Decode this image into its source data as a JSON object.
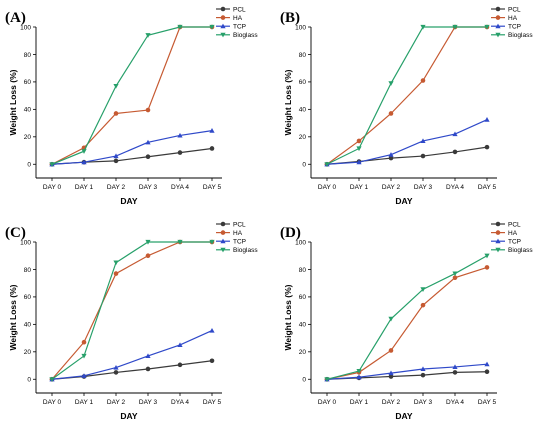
{
  "chart_data": [
    {
      "type": "line",
      "panel_label": "(A)",
      "xlabel": "DAY",
      "ylabel": "Weight Loss (%)",
      "categories": [
        "DAY 0",
        "DAY 1",
        "DAY 2",
        "DAY 3",
        "DYA 4",
        "DAY 5"
      ],
      "ylim": [
        -10,
        100
      ],
      "yticks": [
        0,
        20,
        40,
        60,
        80,
        100
      ],
      "legend_position": "top-right",
      "series": [
        {
          "name": "PCL",
          "color": "#3a3a3a",
          "marker": "circle",
          "values": [
            0,
            1.5,
            2.5,
            5.5,
            8.5,
            11.5
          ]
        },
        {
          "name": "HA",
          "color": "#c65a32",
          "marker": "circle",
          "values": [
            0,
            12,
            37,
            39.5,
            100,
            100
          ]
        },
        {
          "name": "TCP",
          "color": "#2f49c9",
          "marker": "triangle",
          "values": [
            0,
            1.5,
            6,
            16,
            21,
            24.5
          ]
        },
        {
          "name": "Bioglass",
          "color": "#27a06a",
          "marker": "triangle-down",
          "values": [
            0,
            9.5,
            57,
            94,
            100,
            100
          ]
        }
      ]
    },
    {
      "type": "line",
      "panel_label": "(B)",
      "xlabel": "DAY",
      "ylabel": "Weight Loss (%)",
      "categories": [
        "DAY 0",
        "DAY 1",
        "DAY 2",
        "DAY 3",
        "DYA 4",
        "DAY 5"
      ],
      "ylim": [
        -10,
        100
      ],
      "yticks": [
        0,
        20,
        40,
        60,
        80,
        100
      ],
      "legend_position": "top-right",
      "series": [
        {
          "name": "PCL",
          "color": "#3a3a3a",
          "marker": "circle",
          "values": [
            0,
            2,
            4.5,
            6,
            9,
            12.5
          ]
        },
        {
          "name": "HA",
          "color": "#c65a32",
          "marker": "circle",
          "values": [
            0,
            17,
            37,
            61,
            100,
            100
          ]
        },
        {
          "name": "TCP",
          "color": "#2f49c9",
          "marker": "triangle",
          "values": [
            0,
            1.5,
            7,
            17,
            22,
            32.5
          ]
        },
        {
          "name": "Bioglass",
          "color": "#27a06a",
          "marker": "triangle-down",
          "values": [
            0,
            11.5,
            59,
            100,
            100,
            100
          ]
        }
      ]
    },
    {
      "type": "line",
      "panel_label": "(C)",
      "xlabel": "DAY",
      "ylabel": "Weight Loss (%)",
      "categories": [
        "DAY 0",
        "DAY 1",
        "DAY 2",
        "DAY 3",
        "DYA 4",
        "DAY 5"
      ],
      "ylim": [
        -10,
        100
      ],
      "yticks": [
        0,
        20,
        40,
        60,
        80,
        100
      ],
      "legend_position": "top-right",
      "series": [
        {
          "name": "PCL",
          "color": "#3a3a3a",
          "marker": "circle",
          "values": [
            0,
            2,
            5,
            7.5,
            10.5,
            13.5
          ]
        },
        {
          "name": "HA",
          "color": "#c65a32",
          "marker": "circle",
          "values": [
            0,
            27,
            77,
            90,
            100,
            100
          ]
        },
        {
          "name": "TCP",
          "color": "#2f49c9",
          "marker": "triangle",
          "values": [
            0,
            2.5,
            8.5,
            17,
            25,
            35.5
          ]
        },
        {
          "name": "Bioglass",
          "color": "#27a06a",
          "marker": "triangle-down",
          "values": [
            0,
            17,
            85,
            100,
            100,
            100
          ]
        }
      ]
    },
    {
      "type": "line",
      "panel_label": "(D)",
      "xlabel": "DAY",
      "ylabel": "Weight Loss (%)",
      "categories": [
        "DAY 0",
        "DAY 1",
        "DAY 2",
        "DAY 3",
        "DYA 4",
        "DAY 5"
      ],
      "ylim": [
        -10,
        100
      ],
      "yticks": [
        0,
        20,
        40,
        60,
        80,
        100
      ],
      "legend_position": "top-right",
      "series": [
        {
          "name": "PCL",
          "color": "#3a3a3a",
          "marker": "circle",
          "values": [
            0,
            1,
            2,
            3,
            5,
            5.5
          ]
        },
        {
          "name": "HA",
          "color": "#c65a32",
          "marker": "circle",
          "values": [
            0,
            5,
            21,
            54,
            74,
            81.5
          ]
        },
        {
          "name": "TCP",
          "color": "#2f49c9",
          "marker": "triangle",
          "values": [
            0,
            1.5,
            4.5,
            7.5,
            9,
            11
          ]
        },
        {
          "name": "Bioglass",
          "color": "#27a06a",
          "marker": "triangle-down",
          "values": [
            0,
            6,
            44,
            65.5,
            77,
            90
          ]
        }
      ]
    }
  ]
}
